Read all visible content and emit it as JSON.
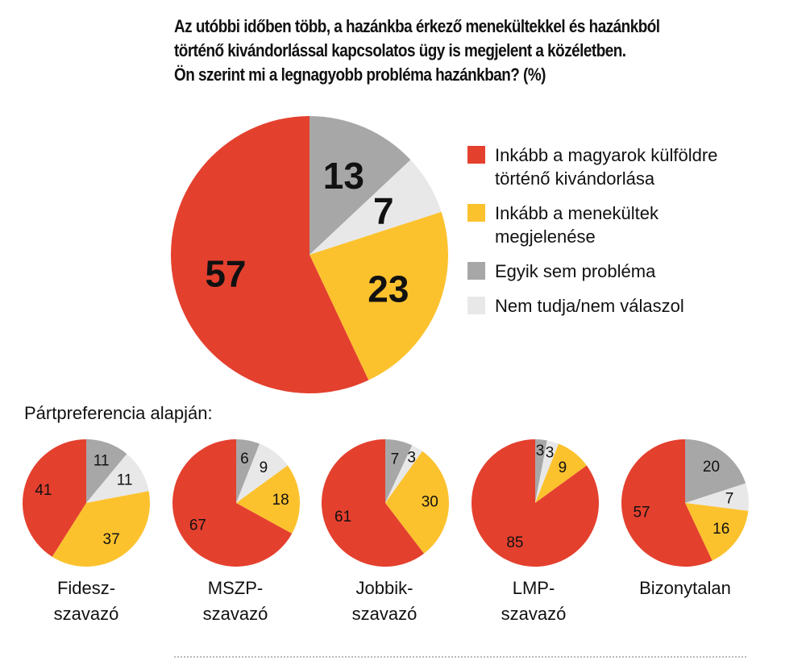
{
  "title": "Az utóbbi időben több, a hazánkba érkező menekültekkel és hazánkból\ntörténő kivándorlással kapcsolatos ügy is megjelent a közéletben.\nÖn szerint mi a legnagyobb probléma hazánkban? (%)",
  "subtitle": "Pártpreferencia alapján:",
  "legend": [
    {
      "label": "Inkább a magyarok külföldre\ntörténő kivándorlása",
      "color": "#e4402e"
    },
    {
      "label": "Inkább a menekültek\nmegjelenése",
      "color": "#fcc22e"
    },
    {
      "label": "Egyik sem probléma",
      "color": "#a7a7a7"
    },
    {
      "label": "Nem tudja/nem válaszol",
      "color": "#e8e8e8"
    }
  ],
  "chart_data": [
    {
      "type": "pie",
      "title": "",
      "categories": [
        "Egyik sem probléma",
        "Nem tudja/nem válaszol",
        "Inkább a menekültek megjelenése",
        "Inkább a magyarok külföldre történő kivándorlása"
      ],
      "values": [
        13,
        7,
        23,
        57
      ],
      "colors": [
        "#a7a7a7",
        "#e8e8e8",
        "#fcc22e",
        "#e4402e"
      ]
    },
    {
      "type": "pie",
      "title": "Fidesz-\nszavazó",
      "categories": [
        "Egyik sem probléma",
        "Nem tudja/nem válaszol",
        "Inkább a menekültek megjelenése",
        "Inkább a magyarok külföldre történő kivándorlása"
      ],
      "values": [
        11,
        11,
        37,
        41
      ],
      "colors": [
        "#a7a7a7",
        "#e8e8e8",
        "#fcc22e",
        "#e4402e"
      ]
    },
    {
      "type": "pie",
      "title": "MSZP-\nszavazó",
      "categories": [
        "Egyik sem probléma",
        "Nem tudja/nem válaszol",
        "Inkább a menekültek megjelenése",
        "Inkább a magyarok külföldre történő kivándorlása"
      ],
      "values": [
        6,
        9,
        18,
        67
      ],
      "colors": [
        "#a7a7a7",
        "#e8e8e8",
        "#fcc22e",
        "#e4402e"
      ]
    },
    {
      "type": "pie",
      "title": "Jobbik-\nszavazó",
      "categories": [
        "Egyik sem probléma",
        "Nem tudja/nem válaszol",
        "Inkább a menekültek megjelenése",
        "Inkább a magyarok külföldre történő kivándorlása"
      ],
      "values": [
        7,
        3,
        30,
        61
      ],
      "colors": [
        "#a7a7a7",
        "#e8e8e8",
        "#fcc22e",
        "#e4402e"
      ]
    },
    {
      "type": "pie",
      "title": "LMP-\nszavazó",
      "categories": [
        "Egyik sem probléma",
        "Nem tudja/nem válaszol",
        "Inkább a menekültek megjelenése",
        "Inkább a magyarok külföldre történő kivándorlása"
      ],
      "values": [
        3,
        3,
        9,
        85
      ],
      "colors": [
        "#a7a7a7",
        "#e8e8e8",
        "#fcc22e",
        "#e4402e"
      ]
    },
    {
      "type": "pie",
      "title": "Bizonytalan",
      "categories": [
        "Egyik sem probléma",
        "Nem tudja/nem válaszol",
        "Inkább a menekültek megjelenése",
        "Inkább a magyarok külföldre történő kivándorlása"
      ],
      "values": [
        20,
        7,
        16,
        57
      ],
      "colors": [
        "#a7a7a7",
        "#e8e8e8",
        "#fcc22e",
        "#e4402e"
      ]
    }
  ]
}
